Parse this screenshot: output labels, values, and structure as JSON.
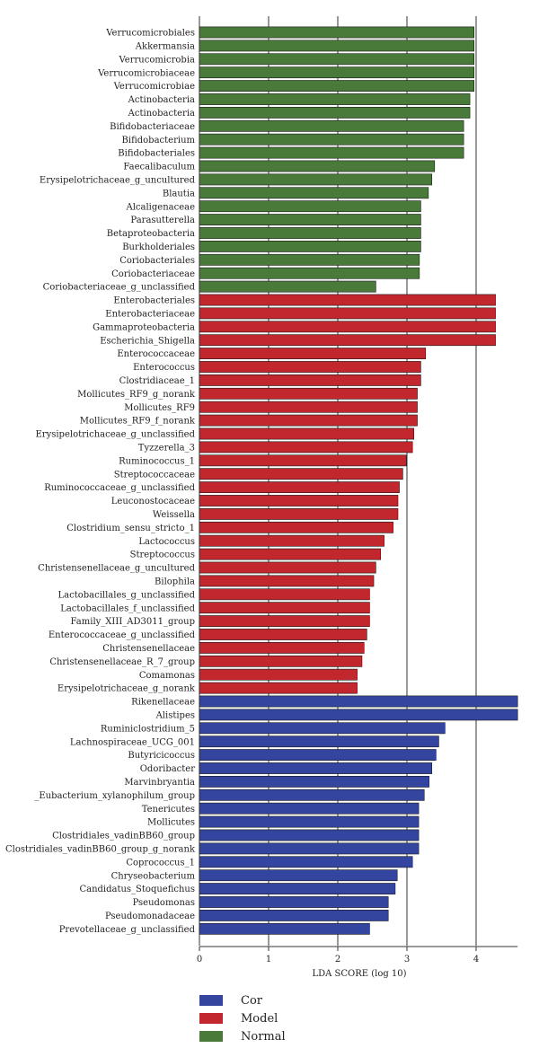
{
  "chart_data": {
    "type": "bar",
    "orientation": "horizontal",
    "xlabel": "LDA SCORE (log 10)",
    "xlim": [
      0,
      4.6
    ],
    "xticks": [
      0,
      1,
      2,
      3,
      4
    ],
    "grid": "vertical",
    "colors": {
      "Cor": "#33459e",
      "Model": "#c1272d",
      "Normal": "#4a7a3a"
    },
    "legend": [
      {
        "name": "Cor",
        "color": "#33459e"
      },
      {
        "name": "Model",
        "color": "#c1272d"
      },
      {
        "name": "Normal",
        "color": "#4a7a3a"
      }
    ],
    "bars": [
      {
        "label": "Verrucomicrobiales",
        "group": "Normal",
        "value": 3.97
      },
      {
        "label": "Akkermansia",
        "group": "Normal",
        "value": 3.97
      },
      {
        "label": "Verrucomicrobia",
        "group": "Normal",
        "value": 3.97
      },
      {
        "label": "Verrucomicrobiaceae",
        "group": "Normal",
        "value": 3.97
      },
      {
        "label": "Verrucomicrobiae",
        "group": "Normal",
        "value": 3.97
      },
      {
        "label": "Actinobacteria",
        "group": "Normal",
        "value": 3.91
      },
      {
        "label": "Actinobacteria",
        "group": "Normal",
        "value": 3.91
      },
      {
        "label": "Bifidobacteriaceae",
        "group": "Normal",
        "value": 3.82
      },
      {
        "label": "Bifidobacterium",
        "group": "Normal",
        "value": 3.82
      },
      {
        "label": "Bifidobacteriales",
        "group": "Normal",
        "value": 3.82
      },
      {
        "label": "Faecalibaculum",
        "group": "Normal",
        "value": 3.4
      },
      {
        "label": "Erysipelotrichaceae_g_uncultured",
        "group": "Normal",
        "value": 3.36
      },
      {
        "label": "Blautia",
        "group": "Normal",
        "value": 3.31
      },
      {
        "label": "Alcaligenaceae",
        "group": "Normal",
        "value": 3.2
      },
      {
        "label": "Parasutterella",
        "group": "Normal",
        "value": 3.2
      },
      {
        "label": "Betaproteobacteria",
        "group": "Normal",
        "value": 3.2
      },
      {
        "label": "Burkholderiales",
        "group": "Normal",
        "value": 3.2
      },
      {
        "label": "Coriobacteriales",
        "group": "Normal",
        "value": 3.18
      },
      {
        "label": "Coriobacteriaceae",
        "group": "Normal",
        "value": 3.18
      },
      {
        "label": "Coriobacteriaceae_g_unclassified",
        "group": "Normal",
        "value": 2.55
      },
      {
        "label": "Enterobacteriales",
        "group": "Model",
        "value": 4.28
      },
      {
        "label": "Enterobacteriaceae",
        "group": "Model",
        "value": 4.28
      },
      {
        "label": "Gammaproteobacteria",
        "group": "Model",
        "value": 4.28
      },
      {
        "label": "Escherichia_Shigella",
        "group": "Model",
        "value": 4.28
      },
      {
        "label": "Enterococcaceae",
        "group": "Model",
        "value": 3.27
      },
      {
        "label": "Enterococcus",
        "group": "Model",
        "value": 3.2
      },
      {
        "label": "Clostridiaceae_1",
        "group": "Model",
        "value": 3.2
      },
      {
        "label": "Mollicutes_RF9_g_norank",
        "group": "Model",
        "value": 3.15
      },
      {
        "label": "Mollicutes_RF9",
        "group": "Model",
        "value": 3.15
      },
      {
        "label": "Mollicutes_RF9_f_norank",
        "group": "Model",
        "value": 3.15
      },
      {
        "label": "Erysipelotrichaceae_g_unclassified",
        "group": "Model",
        "value": 3.1
      },
      {
        "label": "Tyzzerella_3",
        "group": "Model",
        "value": 3.08
      },
      {
        "label": "Ruminococcus_1",
        "group": "Model",
        "value": 2.99
      },
      {
        "label": "Streptococcaceae",
        "group": "Model",
        "value": 2.94
      },
      {
        "label": "Ruminococcaceae_g_unclassified",
        "group": "Model",
        "value": 2.89
      },
      {
        "label": "Leuconostocaceae",
        "group": "Model",
        "value": 2.87
      },
      {
        "label": "Weissella",
        "group": "Model",
        "value": 2.87
      },
      {
        "label": "Clostridium_sensu_stricto_1",
        "group": "Model",
        "value": 2.8
      },
      {
        "label": "Lactococcus",
        "group": "Model",
        "value": 2.67
      },
      {
        "label": "Streptococcus",
        "group": "Model",
        "value": 2.62
      },
      {
        "label": "Christensenellaceae_g_uncultured",
        "group": "Model",
        "value": 2.55
      },
      {
        "label": "Bilophila",
        "group": "Model",
        "value": 2.52
      },
      {
        "label": "Lactobacillales_g_unclassified",
        "group": "Model",
        "value": 2.46
      },
      {
        "label": "Lactobacillales_f_unclassified",
        "group": "Model",
        "value": 2.46
      },
      {
        "label": "Family_XIII_AD3011_group",
        "group": "Model",
        "value": 2.46
      },
      {
        "label": "Enterococcaceae_g_unclassified",
        "group": "Model",
        "value": 2.42
      },
      {
        "label": "Christensenellaceae",
        "group": "Model",
        "value": 2.38
      },
      {
        "label": "Christensenellaceae_R_7_group",
        "group": "Model",
        "value": 2.35
      },
      {
        "label": "Comamonas",
        "group": "Model",
        "value": 2.28
      },
      {
        "label": "Erysipelotrichaceae_g_norank",
        "group": "Model",
        "value": 2.28
      },
      {
        "label": "Rikenellaceae",
        "group": "Cor",
        "value": 4.6
      },
      {
        "label": "Alistipes",
        "group": "Cor",
        "value": 4.6
      },
      {
        "label": "Ruminiclostridium_5",
        "group": "Cor",
        "value": 3.55
      },
      {
        "label": "Lachnospiraceae_UCG_001",
        "group": "Cor",
        "value": 3.46
      },
      {
        "label": "Butyricicoccus",
        "group": "Cor",
        "value": 3.42
      },
      {
        "label": "Odoribacter",
        "group": "Cor",
        "value": 3.36
      },
      {
        "label": "Marvinbryantia",
        "group": "Cor",
        "value": 3.32
      },
      {
        "label": "_Eubacterium_xylanophilum_group",
        "group": "Cor",
        "value": 3.25
      },
      {
        "label": "Tenericutes",
        "group": "Cor",
        "value": 3.17
      },
      {
        "label": "Mollicutes",
        "group": "Cor",
        "value": 3.17
      },
      {
        "label": "Clostridiales_vadinBB60_group",
        "group": "Cor",
        "value": 3.17
      },
      {
        "label": "Clostridiales_vadinBB60_group_g_norank",
        "group": "Cor",
        "value": 3.17
      },
      {
        "label": "Coprococcus_1",
        "group": "Cor",
        "value": 3.08
      },
      {
        "label": "Chryseobacterium",
        "group": "Cor",
        "value": 2.86
      },
      {
        "label": "Candidatus_Stoquefichus",
        "group": "Cor",
        "value": 2.83
      },
      {
        "label": "Pseudomonas",
        "group": "Cor",
        "value": 2.73
      },
      {
        "label": "Pseudomonadaceae",
        "group": "Cor",
        "value": 2.73
      },
      {
        "label": "Prevotellaceae_g_unclassified",
        "group": "Cor",
        "value": 2.46
      }
    ]
  }
}
